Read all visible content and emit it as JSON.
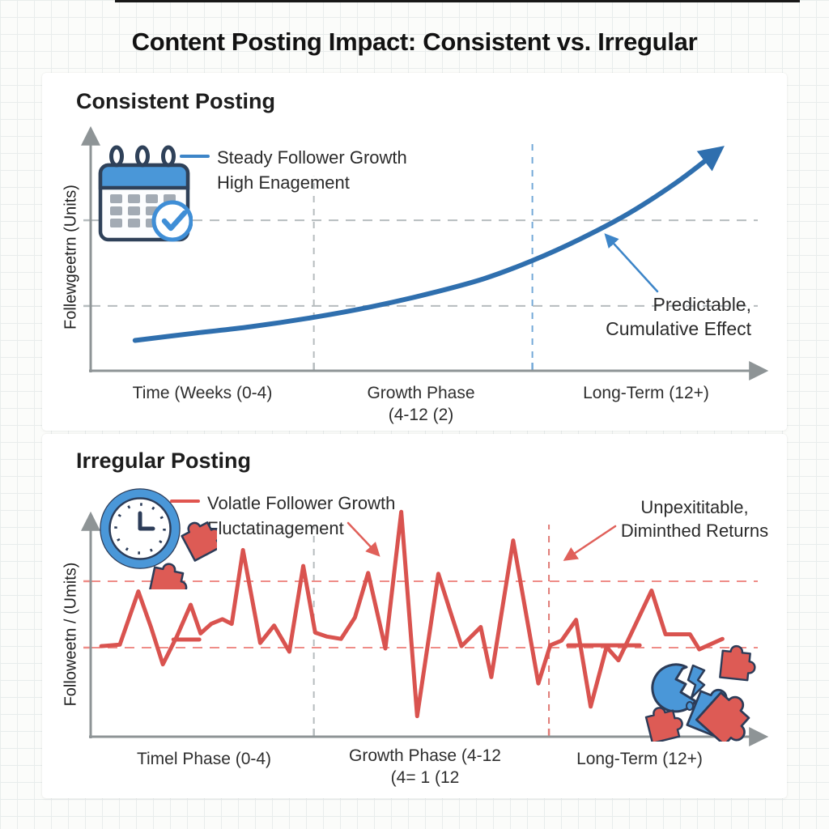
{
  "page": {
    "title": "Content Posting Impact: Consistent vs. Irregular"
  },
  "colors": {
    "blue_line": "#2f6fae",
    "blue_accent": "#3d85c8",
    "icon_blue": "#4a97d8",
    "navy": "#2c3c58",
    "red_line": "#d9534f",
    "red_accent": "#e0605a",
    "red_dash": "#ef8d88",
    "gray_axis": "#8e9496",
    "gray_dash": "#b6bcbe"
  },
  "icons": {
    "consistent_chart": "calendar-check-icon",
    "irregular_chart": "clock-icon",
    "irregular_chart_extra": "puzzle-pieces-icon",
    "irregular_outcome": "broken-puzzle-cluster-icon"
  },
  "chart_data": [
    {
      "type": "line",
      "title": "Consistent Posting",
      "legend": [
        "Steady Follower Growth",
        "High Enagement"
      ],
      "ylabel": "Follewgeetrn (Units)",
      "x_labels": [
        [
          "Time (Weeks (0-4)"
        ],
        [
          "Growth Phase",
          "(4-12 (2)"
        ],
        [
          "Long-Term (12+)"
        ]
      ],
      "annotation_lines": [
        "Predictable,",
        "Cumulative Effect"
      ],
      "x_range": "relative time, weeks 0 to 12+ (0-100%)",
      "y_range": "relative follower growth (0-100%)",
      "grid": "dashed reference lines",
      "legend_position": "top-left",
      "series": [
        {
          "name": "Steady Follower Growth",
          "color": "#2f6fae",
          "smooth": true,
          "arrow_end": true,
          "points": [
            [
              6.7,
              13.1
            ],
            [
              15.6,
              16.2
            ],
            [
              24.1,
              19.0
            ],
            [
              33.7,
              23.1
            ],
            [
              42.3,
              27.6
            ],
            [
              50.8,
              33.1
            ],
            [
              59.3,
              39.7
            ],
            [
              66.7,
              47.6
            ],
            [
              73.9,
              56.9
            ],
            [
              81.2,
              67.9
            ],
            [
              88.5,
              81.4
            ],
            [
              94.5,
              94.5
            ]
          ]
        }
      ],
      "gridlines": {
        "horizontal_pct": [
          28.0,
          65.0
        ],
        "horizontal_color": "#b6bcbe",
        "vertical": [
          {
            "pos_pct": 33.7,
            "color": "#b6bcbe",
            "top_pct": 84
          },
          {
            "pos_pct": 66.7,
            "color": "#74a9d8",
            "top_pct": 100
          }
        ]
      }
    },
    {
      "type": "line",
      "title": "Irregular Posting",
      "legend": [
        "Volatle Follower Growth",
        "Fluctatinagement"
      ],
      "ylabel": "Followeetn / (Umits)",
      "x_labels": [
        [
          "Timel Phase (0-4)"
        ],
        [
          "Growth Phase (4-12",
          "(4= 1 (12"
        ],
        [
          "Long-Term (12+)"
        ]
      ],
      "annotation_lines": [
        "Unpexititable,",
        "Diminthed Returns"
      ],
      "x_range": "relative time, weeks 0 to 12+ (0-100%)",
      "y_range": "relative follower growth (0-100%)",
      "grid": "dashed reference lines",
      "legend_position": "top-left",
      "series": [
        {
          "name": "Volatle Follower Growth",
          "color": "#d9534f",
          "smooth": false,
          "arrow_end": false,
          "points": [
            [
              1.6,
              42.7
            ],
            [
              4.4,
              43.4
            ],
            [
              7.2,
              68.5
            ],
            [
              9.1,
              51.7
            ],
            [
              10.9,
              34.1
            ],
            [
              13.0,
              47.2
            ],
            [
              15.1,
              62.2
            ],
            [
              16.6,
              48.7
            ],
            [
              18.2,
              53.2
            ],
            [
              19.9,
              55.4
            ],
            [
              21.3,
              53.2
            ],
            [
              23.0,
              88.0
            ],
            [
              25.6,
              44.2
            ],
            [
              27.7,
              52.4
            ],
            [
              30.0,
              40.1
            ],
            [
              32.1,
              80.5
            ],
            [
              33.9,
              49.1
            ],
            [
              35.7,
              47.2
            ],
            [
              37.8,
              46.1
            ],
            [
              39.9,
              56.2
            ],
            [
              41.9,
              77.2
            ],
            [
              44.5,
              41.6
            ],
            [
              46.9,
              106.0
            ],
            [
              49.3,
              9.7
            ],
            [
              52.5,
              76.8
            ],
            [
              54.4,
              58.1
            ],
            [
              56.0,
              42.7
            ],
            [
              58.9,
              51.7
            ],
            [
              60.5,
              28.1
            ],
            [
              63.8,
              92.5
            ],
            [
              67.6,
              25.1
            ],
            [
              69.4,
              43.1
            ],
            [
              71.1,
              45.3
            ],
            [
              73.3,
              55.1
            ],
            [
              75.5,
              14.2
            ],
            [
              77.9,
              42.3
            ],
            [
              79.7,
              36.0
            ],
            [
              84.7,
              68.9
            ],
            [
              86.8,
              48.3
            ],
            [
              90.5,
              48.3
            ],
            [
              91.9,
              41.2
            ],
            [
              95.4,
              46.1
            ]
          ]
        }
      ],
      "extra_segments": [
        {
          "points": [
            [
              12.5,
              45.8
            ],
            [
              16.4,
              45.8
            ]
          ]
        },
        {
          "points": [
            [
              72.1,
              43.1
            ],
            [
              82.9,
              43.1
            ]
          ]
        }
      ],
      "gridlines": {
        "horizontal_pct": [
          42.0,
          73.3
        ],
        "horizontal_color": "#ef8d88",
        "vertical": [
          {
            "pos_pct": 33.7,
            "color": "#b6bcbe",
            "top_pct": 100
          },
          {
            "pos_pct": 69.2,
            "color": "#e07b76",
            "top_pct": 100
          }
        ]
      }
    }
  ]
}
